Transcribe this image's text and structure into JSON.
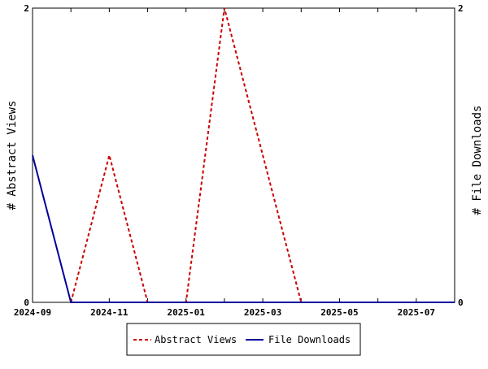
{
  "chart_data": {
    "type": "line",
    "x": [
      "2024-09",
      "2024-10",
      "2024-11",
      "2024-12",
      "2025-01",
      "2025-02",
      "2025-03",
      "2025-04",
      "2025-05",
      "2025-06",
      "2025-07",
      "2025-08"
    ],
    "x_tick_labels": [
      "2024-09",
      "2024-11",
      "2025-01",
      "2025-03",
      "2025-05",
      "2025-07"
    ],
    "xlim": [
      "2024-09",
      "2025-08"
    ],
    "series": [
      {
        "name": "Abstract Views",
        "axis": "left",
        "color": "#cc0000",
        "style": "dashed",
        "values": [
          null,
          0,
          1,
          0,
          0,
          2,
          1,
          0,
          0,
          0,
          0,
          0
        ]
      },
      {
        "name": "File Downloads",
        "axis": "right",
        "color": "#000099",
        "style": "solid",
        "values": [
          1,
          0,
          0,
          0,
          0,
          0,
          0,
          0,
          0,
          0,
          0,
          0
        ]
      }
    ],
    "ylabel": "# Abstract Views",
    "y2label": "# File Downloads",
    "ylim": [
      0,
      2
    ],
    "y2lim": [
      0,
      2
    ],
    "y_tick_labels": [
      "0",
      "2"
    ],
    "y2_tick_labels": [
      "0",
      "2"
    ],
    "grid": false,
    "legend_position": "bottom-center"
  }
}
